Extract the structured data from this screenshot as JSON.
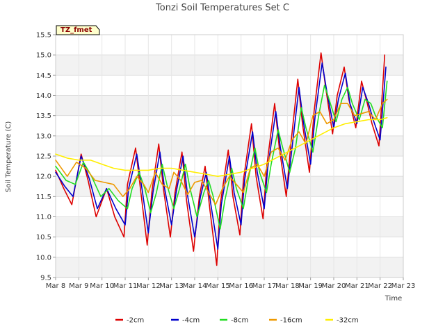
{
  "chart_data": {
    "type": "line",
    "title": "Tonzi Soil Temperatures Set C",
    "xlabel": "Time",
    "ylabel": "Soil Temperature (C)",
    "badge": "TZ_fmet",
    "xlim": [
      8,
      23
    ],
    "ylim": [
      9.5,
      15.5
    ],
    "x_ticks": [
      {
        "value": 8,
        "label": "Mar 8"
      },
      {
        "value": 9,
        "label": "Mar 9"
      },
      {
        "value": 10,
        "label": "Mar 10"
      },
      {
        "value": 11,
        "label": "Mar 11"
      },
      {
        "value": 12,
        "label": "Mar 12"
      },
      {
        "value": 13,
        "label": "Mar 13"
      },
      {
        "value": 14,
        "label": "Mar 14"
      },
      {
        "value": 15,
        "label": "Mar 15"
      },
      {
        "value": 16,
        "label": "Mar 16"
      },
      {
        "value": 17,
        "label": "Mar 17"
      },
      {
        "value": 18,
        "label": "Mar 18"
      },
      {
        "value": 19,
        "label": "Mar 19"
      },
      {
        "value": 20,
        "label": "Mar 20"
      },
      {
        "value": 21,
        "label": "Mar 21"
      },
      {
        "value": 22,
        "label": "Mar 22"
      },
      {
        "value": 23,
        "label": "Mar 23"
      }
    ],
    "y_ticks": [
      {
        "value": 9.5,
        "label": "9.5"
      },
      {
        "value": 10.0,
        "label": "10.0"
      },
      {
        "value": 10.5,
        "label": "10.5"
      },
      {
        "value": 11.0,
        "label": "11.0"
      },
      {
        "value": 11.5,
        "label": "11.5"
      },
      {
        "value": 12.0,
        "label": "12.0"
      },
      {
        "value": 12.5,
        "label": "12.5"
      },
      {
        "value": 13.0,
        "label": "13.0"
      },
      {
        "value": 13.5,
        "label": "13.5"
      },
      {
        "value": 14.0,
        "label": "14.0"
      },
      {
        "value": 14.5,
        "label": "14.5"
      },
      {
        "value": 15.0,
        "label": "15.0"
      },
      {
        "value": 15.5,
        "label": "15.5"
      }
    ],
    "grid": true,
    "legend_position": "bottom",
    "series": [
      {
        "name": "-2cm",
        "color": "#dd0000",
        "x": [
          8.0,
          8.35,
          8.7,
          9.1,
          9.4,
          9.75,
          10.2,
          10.55,
          10.95,
          11.1,
          11.45,
          11.7,
          11.95,
          12.15,
          12.45,
          12.65,
          12.95,
          13.15,
          13.45,
          13.65,
          13.95,
          14.2,
          14.45,
          14.65,
          14.95,
          15.1,
          15.45,
          15.65,
          15.95,
          16.1,
          16.45,
          16.65,
          16.95,
          17.1,
          17.45,
          17.65,
          17.95,
          18.15,
          18.45,
          18.65,
          18.95,
          19.15,
          19.45,
          19.65,
          19.95,
          20.15,
          20.45,
          20.65,
          20.95,
          21.2,
          21.45,
          21.65,
          21.95,
          22.2
        ],
        "values": [
          12.15,
          11.7,
          11.3,
          12.55,
          11.9,
          11.0,
          11.7,
          11.0,
          10.5,
          11.8,
          12.7,
          11.5,
          10.3,
          11.6,
          12.8,
          11.7,
          10.5,
          11.6,
          12.6,
          11.4,
          10.15,
          11.5,
          12.25,
          11.2,
          9.8,
          11.3,
          12.65,
          11.5,
          10.55,
          11.9,
          13.3,
          12.0,
          10.95,
          12.2,
          13.8,
          12.7,
          11.5,
          12.8,
          14.4,
          13.3,
          12.1,
          13.6,
          15.05,
          14.2,
          13.05,
          14.0,
          14.7,
          13.9,
          13.2,
          14.35,
          13.8,
          13.3,
          12.75,
          15.0
        ]
      },
      {
        "name": "-4cm",
        "color": "#0000cc",
        "x": [
          8.0,
          8.4,
          8.75,
          9.1,
          9.45,
          9.8,
          10.2,
          10.6,
          11.0,
          11.15,
          11.5,
          11.75,
          12.0,
          12.2,
          12.5,
          12.7,
          13.0,
          13.2,
          13.5,
          13.7,
          14.0,
          14.25,
          14.5,
          14.7,
          15.0,
          15.15,
          15.5,
          15.7,
          16.0,
          16.15,
          16.5,
          16.7,
          17.0,
          17.15,
          17.5,
          17.7,
          18.0,
          18.2,
          18.5,
          18.7,
          19.0,
          19.2,
          19.5,
          19.7,
          20.0,
          20.2,
          20.5,
          20.7,
          21.0,
          21.25,
          21.5,
          21.7,
          22.0,
          22.25
        ],
        "values": [
          12.1,
          11.75,
          11.5,
          12.5,
          11.95,
          11.2,
          11.7,
          11.2,
          10.8,
          11.7,
          12.55,
          11.6,
          10.6,
          11.6,
          12.6,
          11.7,
          10.8,
          11.6,
          12.5,
          11.5,
          10.5,
          11.5,
          12.1,
          11.3,
          10.2,
          11.3,
          12.5,
          11.6,
          10.8,
          11.9,
          13.1,
          12.1,
          11.2,
          12.2,
          13.6,
          12.7,
          11.7,
          12.7,
          14.2,
          13.3,
          12.3,
          13.5,
          14.8,
          14.1,
          13.2,
          13.9,
          14.55,
          13.8,
          13.3,
          14.2,
          13.8,
          13.4,
          12.9,
          14.7
        ]
      },
      {
        "name": "-8cm",
        "color": "#22dd22",
        "x": [
          8.0,
          8.45,
          8.85,
          9.2,
          9.55,
          9.95,
          10.3,
          10.7,
          11.1,
          11.3,
          11.6,
          11.85,
          12.1,
          12.35,
          12.6,
          12.8,
          13.1,
          13.35,
          13.6,
          13.8,
          14.1,
          14.4,
          14.6,
          14.8,
          15.1,
          15.3,
          15.6,
          15.8,
          16.1,
          16.3,
          16.6,
          16.8,
          17.1,
          17.3,
          17.6,
          17.8,
          18.1,
          18.35,
          18.6,
          18.8,
          19.1,
          19.35,
          19.6,
          19.8,
          20.1,
          20.35,
          20.6,
          20.8,
          21.1,
          21.35,
          21.6,
          21.8,
          22.1,
          22.3
        ],
        "values": [
          12.25,
          11.9,
          11.8,
          12.35,
          12.0,
          11.5,
          11.7,
          11.4,
          11.2,
          11.7,
          12.1,
          11.7,
          11.1,
          11.6,
          12.3,
          11.8,
          11.2,
          11.7,
          12.3,
          11.7,
          11.0,
          11.6,
          11.9,
          11.5,
          10.7,
          11.4,
          12.2,
          11.7,
          11.2,
          11.9,
          12.7,
          12.1,
          11.6,
          12.3,
          13.15,
          12.7,
          12.1,
          12.7,
          13.7,
          13.2,
          12.6,
          13.5,
          14.25,
          13.9,
          13.35,
          13.9,
          14.2,
          13.8,
          13.4,
          13.9,
          13.8,
          13.5,
          13.2,
          14.35
        ]
      },
      {
        "name": "-16cm",
        "color": "#ee9900",
        "x": [
          8.0,
          8.5,
          8.9,
          9.3,
          9.7,
          10.1,
          10.5,
          10.9,
          11.2,
          11.5,
          11.8,
          12.0,
          12.3,
          12.6,
          12.9,
          13.1,
          13.4,
          13.7,
          14.0,
          14.3,
          14.6,
          14.9,
          15.2,
          15.5,
          15.8,
          16.1,
          16.4,
          16.7,
          17.0,
          17.3,
          17.6,
          17.9,
          18.2,
          18.5,
          18.8,
          19.1,
          19.4,
          19.7,
          20.0,
          20.3,
          20.6,
          20.9,
          21.2,
          21.5,
          21.8,
          22.1,
          22.3
        ],
        "values": [
          12.4,
          12.0,
          12.35,
          12.2,
          11.9,
          11.85,
          11.8,
          11.5,
          11.7,
          12.0,
          11.8,
          11.6,
          12.1,
          11.8,
          11.7,
          12.1,
          11.9,
          11.55,
          11.85,
          11.9,
          11.6,
          11.3,
          11.7,
          12.0,
          11.8,
          11.6,
          12.2,
          12.3,
          12.0,
          12.6,
          12.7,
          12.4,
          12.9,
          13.1,
          12.8,
          13.5,
          13.6,
          13.3,
          13.4,
          13.8,
          13.8,
          13.5,
          13.55,
          13.6,
          13.4,
          13.8,
          13.9
        ]
      },
      {
        "name": "-32cm",
        "color": "#ffee00",
        "x": [
          8.0,
          8.5,
          9.0,
          9.5,
          10.0,
          10.5,
          11.0,
          11.5,
          12.0,
          12.5,
          13.0,
          13.5,
          14.0,
          14.5,
          15.0,
          15.5,
          16.0,
          16.5,
          17.0,
          17.5,
          18.0,
          18.5,
          19.0,
          19.5,
          20.0,
          20.5,
          21.0,
          21.5,
          22.0,
          22.3
        ],
        "values": [
          12.55,
          12.45,
          12.4,
          12.4,
          12.3,
          12.2,
          12.15,
          12.15,
          12.15,
          12.2,
          12.2,
          12.15,
          12.1,
          12.05,
          12.0,
          12.05,
          12.1,
          12.2,
          12.3,
          12.45,
          12.6,
          12.75,
          12.9,
          13.05,
          13.2,
          13.3,
          13.35,
          13.4,
          13.4,
          13.45
        ]
      }
    ]
  }
}
